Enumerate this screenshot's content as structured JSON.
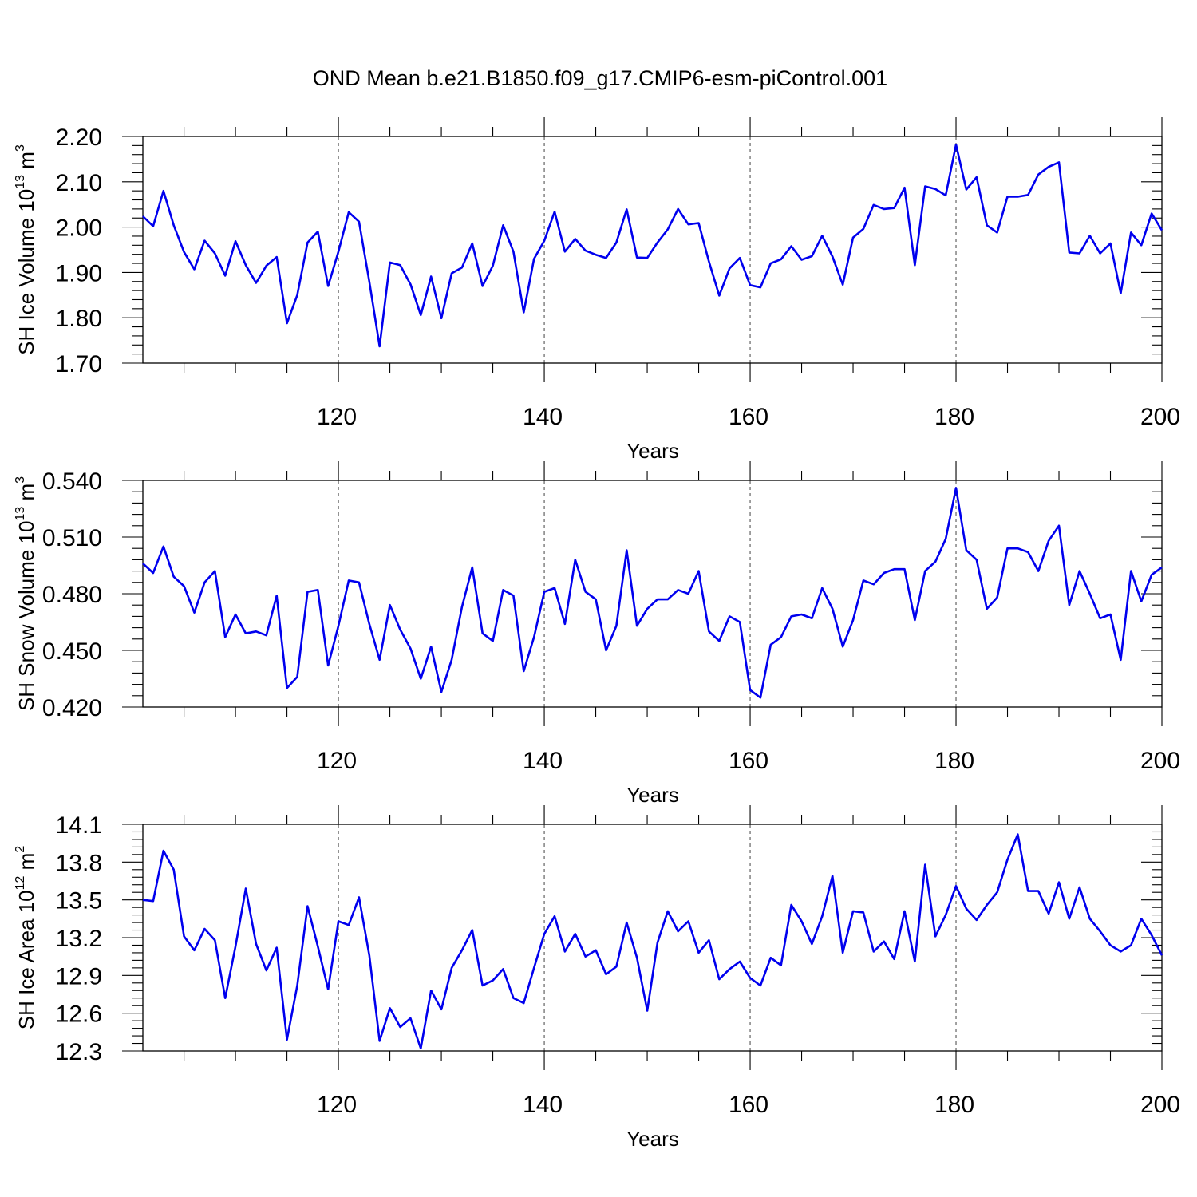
{
  "title": "OND Mean b.e21.B1850.f09_g17.CMIP6-esm-piControl.001",
  "chart_data": [
    {
      "type": "line",
      "name": "ice-volume",
      "ylabel": "SH Ice Volume",
      "ylabel_base": "10",
      "ylabel_exp": "13",
      "ylabel_unit": "m",
      "ylabel_unit_exp": "3",
      "xlabel": "Years",
      "xlim": [
        101,
        200
      ],
      "ylim": [
        1.7,
        2.2
      ],
      "yticks": [
        1.7,
        1.8,
        1.9,
        2.0,
        2.1,
        2.2
      ],
      "ytick_labels": [
        "1.70",
        "1.80",
        "1.90",
        "2.00",
        "2.10",
        "2.20"
      ],
      "xticks": [
        120,
        140,
        160,
        180,
        200
      ],
      "xtick_labels": [
        "120",
        "140",
        "160",
        "180",
        "200"
      ],
      "dashed_gridlines_x": [
        120,
        140,
        160,
        180
      ],
      "color": "#0000ee",
      "x_start": 101,
      "values": [
        2.024,
        2.002,
        2.08,
        2.004,
        1.945,
        1.907,
        1.97,
        1.942,
        1.893,
        1.969,
        1.916,
        1.877,
        1.915,
        1.934,
        1.788,
        1.85,
        1.966,
        1.99,
        1.87,
        1.946,
        2.033,
        2.012,
        1.88,
        1.737,
        1.922,
        1.916,
        1.874,
        1.806,
        1.891,
        1.799,
        1.898,
        1.911,
        1.964,
        1.87,
        1.915,
        2.004,
        1.946,
        1.812,
        1.93,
        1.97,
        2.034,
        1.946,
        1.974,
        1.948,
        1.939,
        1.932,
        1.966,
        2.039,
        1.933,
        1.932,
        1.966,
        1.995,
        2.04,
        2.006,
        2.009,
        1.924,
        1.849,
        1.909,
        1.932,
        1.872,
        1.867,
        1.92,
        1.929,
        1.958,
        1.928,
        1.936,
        1.981,
        1.935,
        1.873,
        1.977,
        1.996,
        2.049,
        2.04,
        2.042,
        2.087,
        1.916,
        2.09,
        2.084,
        2.07,
        2.182,
        2.083,
        2.11,
        2.004,
        1.988,
        2.067,
        2.067,
        2.071,
        2.116,
        2.133,
        2.143,
        1.944,
        1.942,
        1.981,
        1.942,
        1.964,
        1.854,
        1.988,
        1.96,
        2.03,
        1.993
      ]
    },
    {
      "type": "line",
      "name": "snow-volume",
      "ylabel": "SH Snow Volume",
      "ylabel_base": "10",
      "ylabel_exp": "13",
      "ylabel_unit": "m",
      "ylabel_unit_exp": "3",
      "xlabel": "Years",
      "xlim": [
        101,
        200
      ],
      "ylim": [
        0.42,
        0.54
      ],
      "yticks": [
        0.42,
        0.45,
        0.48,
        0.51,
        0.54
      ],
      "ytick_labels": [
        "0.420",
        "0.450",
        "0.480",
        "0.510",
        "0.540"
      ],
      "xticks": [
        120,
        140,
        160,
        180,
        200
      ],
      "xtick_labels": [
        "120",
        "140",
        "160",
        "180",
        "200"
      ],
      "dashed_gridlines_x": [
        120,
        140,
        160,
        180
      ],
      "color": "#0000ee",
      "x_start": 101,
      "values": [
        0.496,
        0.491,
        0.505,
        0.489,
        0.484,
        0.47,
        0.486,
        0.492,
        0.457,
        0.469,
        0.459,
        0.46,
        0.458,
        0.479,
        0.43,
        0.436,
        0.481,
        0.482,
        0.442,
        0.463,
        0.487,
        0.486,
        0.464,
        0.445,
        0.474,
        0.461,
        0.451,
        0.435,
        0.452,
        0.428,
        0.445,
        0.473,
        0.494,
        0.459,
        0.455,
        0.482,
        0.479,
        0.439,
        0.457,
        0.481,
        0.483,
        0.464,
        0.498,
        0.481,
        0.477,
        0.45,
        0.463,
        0.503,
        0.463,
        0.472,
        0.477,
        0.477,
        0.482,
        0.48,
        0.492,
        0.46,
        0.455,
        0.468,
        0.465,
        0.429,
        0.425,
        0.453,
        0.457,
        0.468,
        0.469,
        0.467,
        0.483,
        0.472,
        0.452,
        0.466,
        0.487,
        0.485,
        0.491,
        0.493,
        0.493,
        0.466,
        0.492,
        0.497,
        0.509,
        0.536,
        0.503,
        0.498,
        0.472,
        0.478,
        0.504,
        0.504,
        0.502,
        0.492,
        0.508,
        0.516,
        0.474,
        0.492,
        0.48,
        0.467,
        0.469,
        0.445,
        0.492,
        0.476,
        0.49,
        0.494
      ]
    },
    {
      "type": "line",
      "name": "ice-area",
      "ylabel": "SH Ice Area",
      "ylabel_base": "10",
      "ylabel_exp": "12",
      "ylabel_unit": "m",
      "ylabel_unit_exp": "2",
      "xlabel": "Years",
      "xlim": [
        101,
        200
      ],
      "ylim": [
        12.3,
        14.1
      ],
      "yticks": [
        12.3,
        12.6,
        12.9,
        13.2,
        13.5,
        13.8,
        14.1
      ],
      "ytick_labels": [
        "12.3",
        "12.6",
        "12.9",
        "13.2",
        "13.5",
        "13.8",
        "14.1"
      ],
      "xticks": [
        120,
        140,
        160,
        180,
        200
      ],
      "xtick_labels": [
        "120",
        "140",
        "160",
        "180",
        "200"
      ],
      "dashed_gridlines_x": [
        120,
        140,
        160,
        180
      ],
      "color": "#0000ee",
      "x_start": 101,
      "values": [
        13.5,
        13.49,
        13.89,
        13.74,
        13.21,
        13.1,
        13.27,
        13.18,
        12.72,
        13.13,
        13.59,
        13.15,
        12.94,
        13.12,
        12.39,
        12.82,
        13.45,
        13.13,
        12.79,
        13.33,
        13.3,
        13.52,
        13.06,
        12.38,
        12.64,
        12.49,
        12.56,
        12.32,
        12.78,
        12.63,
        12.96,
        13.1,
        13.26,
        12.82,
        12.86,
        12.95,
        12.72,
        12.68,
        12.96,
        13.23,
        13.37,
        13.09,
        13.23,
        13.05,
        13.1,
        12.91,
        12.97,
        13.32,
        13.04,
        12.62,
        13.16,
        13.41,
        13.25,
        13.33,
        13.08,
        13.18,
        12.87,
        12.95,
        13.01,
        12.88,
        12.82,
        13.04,
        12.98,
        13.46,
        13.33,
        13.15,
        13.37,
        13.69,
        13.08,
        13.41,
        13.4,
        13.09,
        13.17,
        13.03,
        13.41,
        13.01,
        13.78,
        13.21,
        13.38,
        13.61,
        13.43,
        13.34,
        13.46,
        13.56,
        13.82,
        14.02,
        13.57,
        13.57,
        13.39,
        13.64,
        13.35,
        13.6,
        13.35,
        13.25,
        13.14,
        13.09,
        13.14,
        13.35,
        13.22,
        13.06
      ]
    }
  ]
}
